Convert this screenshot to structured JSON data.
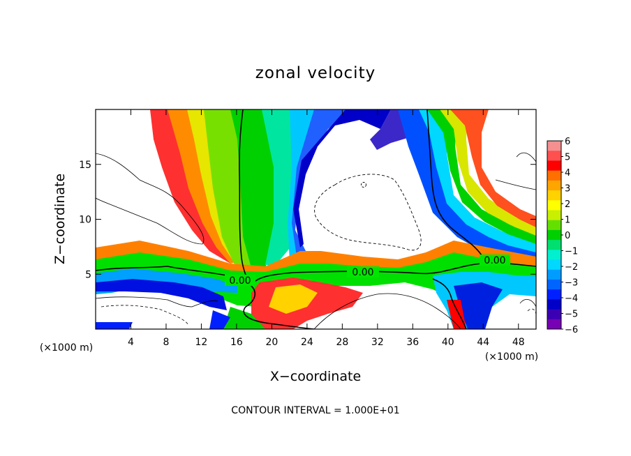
{
  "chart_data": {
    "type": "heatmap",
    "title": "zonal velocity",
    "xlabel": "X−coordinate",
    "ylabel": "Z−coordinate",
    "x_unit_left": "(×1000 m)",
    "x_unit_right": "(×1000 m)",
    "footer": "CONTOUR INTERVAL = 1.000E+01",
    "xlim": [
      0,
      50
    ],
    "ylim": [
      0,
      20
    ],
    "x_ticks": [
      4,
      8,
      12,
      16,
      20,
      24,
      28,
      32,
      36,
      40,
      44,
      48
    ],
    "y_ticks": [
      5,
      10,
      15
    ],
    "colorbar": {
      "min": -6,
      "max": 6,
      "labels": [
        "6",
        "5",
        "4",
        "3",
        "2",
        "1",
        "0",
        "−1",
        "−2",
        "−3",
        "−4",
        "−5",
        "−6"
      ],
      "colors": [
        "#f49090",
        "#ff5050",
        "#ff0000",
        "#ff7000",
        "#ffa500",
        "#ffd200",
        "#ffff00",
        "#c8f000",
        "#64e000",
        "#00d000",
        "#00e070",
        "#00f0d0",
        "#00d8ff",
        "#009cff",
        "#0064ff",
        "#0020ff",
        "#0000c8",
        "#3c00b4",
        "#7800b4"
      ]
    },
    "contour_labels": [
      {
        "text": "0.00",
        "x": 16.8,
        "z": 4.3
      },
      {
        "text": "0.00",
        "x": 29.2,
        "z": 5.0
      },
      {
        "text": "0.00",
        "x": 45.5,
        "z": 6.2
      }
    ]
  }
}
